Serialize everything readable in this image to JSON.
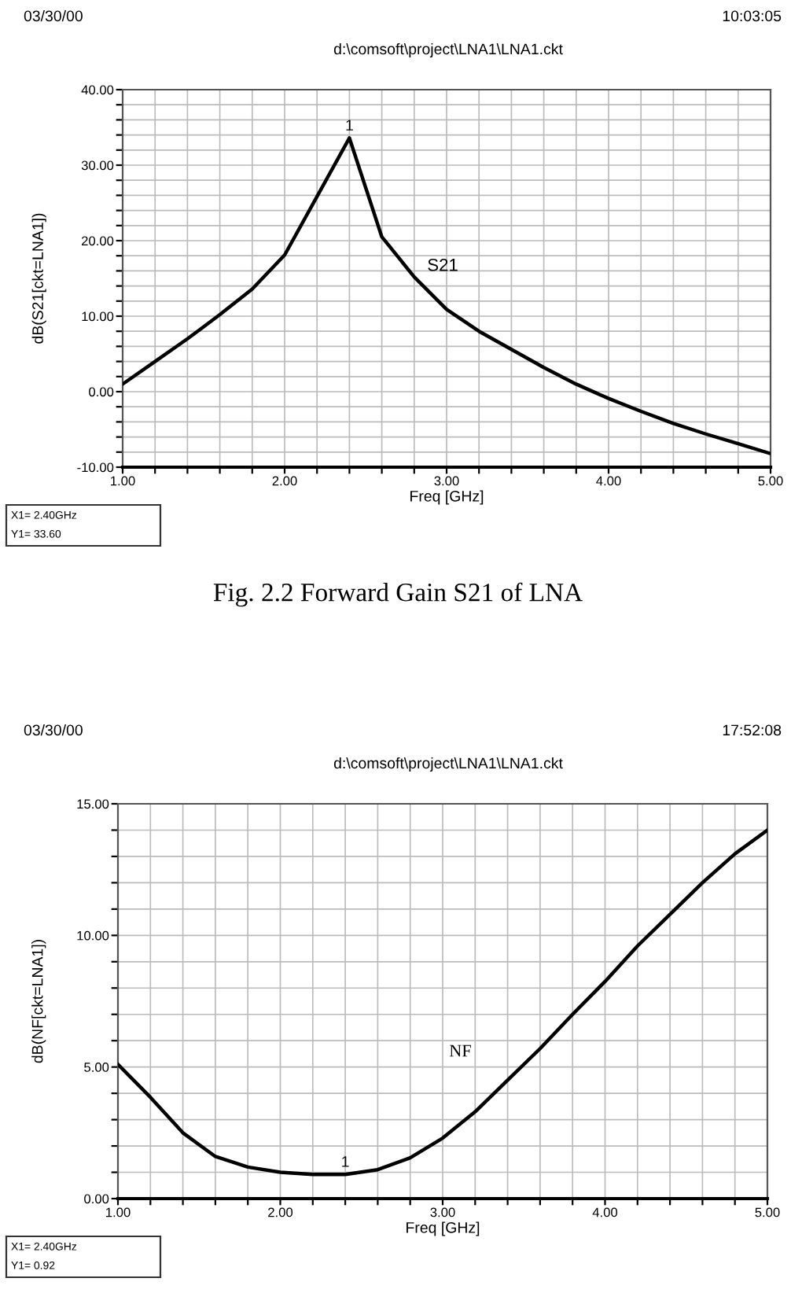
{
  "chart_data": [
    {
      "type": "line",
      "xlabel": "Freq [GHz]",
      "ylabel": "dB(S21[ckt=LNA1])",
      "x": [
        1.0,
        1.2,
        1.4,
        1.6,
        1.8,
        2.0,
        2.4,
        2.6,
        2.8,
        3.0,
        3.2,
        3.4,
        3.6,
        3.8,
        4.0,
        4.2,
        4.4,
        4.6,
        4.8,
        5.0
      ],
      "series": [
        {
          "name": "S21",
          "color": "#000000",
          "values": [
            1.0,
            4.0,
            7.0,
            10.2,
            13.6,
            18.1,
            33.6,
            20.5,
            15.2,
            10.9,
            8.0,
            5.6,
            3.2,
            1.0,
            -0.9,
            -2.6,
            -4.2,
            -5.6,
            -6.9,
            -8.2
          ]
        }
      ],
      "xlim": [
        1,
        5
      ],
      "ylim": [
        -10,
        40
      ],
      "xticks": [
        {
          "value": 1,
          "label": "1.00"
        },
        {
          "value": 1.2,
          "label": null
        },
        {
          "value": 1.4,
          "label": null
        },
        {
          "value": 1.6,
          "label": null
        },
        {
          "value": 1.8,
          "label": null
        },
        {
          "value": 2,
          "label": "2.00"
        },
        {
          "value": 2.2,
          "label": null
        },
        {
          "value": 2.4,
          "label": null
        },
        {
          "value": 2.6,
          "label": null
        },
        {
          "value": 2.8,
          "label": null
        },
        {
          "value": 3,
          "label": "3.00"
        },
        {
          "value": 3.2,
          "label": null
        },
        {
          "value": 3.4,
          "label": null
        },
        {
          "value": 3.6,
          "label": null
        },
        {
          "value": 3.8,
          "label": null
        },
        {
          "value": 4,
          "label": "4.00"
        },
        {
          "value": 4.2,
          "label": null
        },
        {
          "value": 4.4,
          "label": null
        },
        {
          "value": 4.6,
          "label": null
        },
        {
          "value": 4.8,
          "label": null
        },
        {
          "value": 5,
          "label": "5.00"
        }
      ],
      "yticks": [
        {
          "value": -10,
          "label": "-10.00"
        },
        {
          "value": -8,
          "label": null
        },
        {
          "value": -6,
          "label": null
        },
        {
          "value": -4,
          "label": null
        },
        {
          "value": -2,
          "label": null
        },
        {
          "value": 0,
          "label": "0.00"
        },
        {
          "value": 2,
          "label": null
        },
        {
          "value": 4,
          "label": null
        },
        {
          "value": 6,
          "label": null
        },
        {
          "value": 8,
          "label": null
        },
        {
          "value": 10,
          "label": "10.00"
        },
        {
          "value": 12,
          "label": null
        },
        {
          "value": 14,
          "label": null
        },
        {
          "value": 16,
          "label": null
        },
        {
          "value": 18,
          "label": null
        },
        {
          "value": 20,
          "label": "20.00"
        },
        {
          "value": 22,
          "label": null
        },
        {
          "value": 24,
          "label": null
        },
        {
          "value": 26,
          "label": null
        },
        {
          "value": 28,
          "label": null
        },
        {
          "value": 30,
          "label": "30.00"
        },
        {
          "value": 32,
          "label": null
        },
        {
          "value": 34,
          "label": null
        },
        {
          "value": 36,
          "label": null
        },
        {
          "value": 38,
          "label": null
        },
        {
          "value": 40,
          "label": "40.00"
        }
      ],
      "grid": true,
      "legend": false,
      "marker": "none",
      "line_style": "solid",
      "annotations": [
        "03/30/00",
        "10:03:05",
        "d:\\comsoft\\project\\LNA1\\LNA1.ckt",
        "X1= 2.40GHz",
        "Y1= 33.60",
        {
          "text": "1",
          "x": 2.4,
          "y": 33.6
        },
        "Fig. 2.2 Forward Gain S21 of LNA"
      ]
    },
    {
      "type": "line",
      "xlabel": "Freq [GHz]",
      "ylabel": "dB(NF[ckt=LNA1])",
      "x": [
        1.0,
        1.2,
        1.4,
        1.6,
        1.8,
        2.0,
        2.2,
        2.4,
        2.6,
        2.8,
        3.0,
        3.2,
        3.4,
        3.6,
        3.8,
        4.0,
        4.2,
        4.4,
        4.6,
        4.8,
        5.0
      ],
      "series": [
        {
          "name": "NF",
          "color": "#000000",
          "values": [
            5.1,
            3.85,
            2.5,
            1.6,
            1.2,
            1.0,
            0.92,
            0.92,
            1.1,
            1.55,
            2.3,
            3.3,
            4.5,
            5.7,
            7.0,
            8.25,
            9.6,
            10.8,
            12.0,
            13.1,
            14.0
          ]
        }
      ],
      "xlim": [
        1,
        5
      ],
      "ylim": [
        0,
        15
      ],
      "xticks": [
        {
          "value": 1,
          "label": "1.00"
        },
        {
          "value": 1.2,
          "label": null
        },
        {
          "value": 1.4,
          "label": null
        },
        {
          "value": 1.6,
          "label": null
        },
        {
          "value": 1.8,
          "label": null
        },
        {
          "value": 2,
          "label": "2.00"
        },
        {
          "value": 2.2,
          "label": null
        },
        {
          "value": 2.4,
          "label": null
        },
        {
          "value": 2.6,
          "label": null
        },
        {
          "value": 2.8,
          "label": null
        },
        {
          "value": 3,
          "label": "3.00"
        },
        {
          "value": 3.2,
          "label": null
        },
        {
          "value": 3.4,
          "label": null
        },
        {
          "value": 3.6,
          "label": null
        },
        {
          "value": 3.8,
          "label": null
        },
        {
          "value": 4,
          "label": "4.00"
        },
        {
          "value": 4.2,
          "label": null
        },
        {
          "value": 4.4,
          "label": null
        },
        {
          "value": 4.6,
          "label": null
        },
        {
          "value": 4.8,
          "label": null
        },
        {
          "value": 5,
          "label": "5.00"
        }
      ],
      "yticks": [
        {
          "value": 0,
          "label": "0.00"
        },
        {
          "value": 1,
          "label": null
        },
        {
          "value": 2,
          "label": null
        },
        {
          "value": 3,
          "label": null
        },
        {
          "value": 4,
          "label": null
        },
        {
          "value": 5,
          "label": "5.00"
        },
        {
          "value": 6,
          "label": null
        },
        {
          "value": 7,
          "label": null
        },
        {
          "value": 8,
          "label": null
        },
        {
          "value": 9,
          "label": null
        },
        {
          "value": 10,
          "label": "10.00"
        },
        {
          "value": 11,
          "label": null
        },
        {
          "value": 12,
          "label": null
        },
        {
          "value": 13,
          "label": null
        },
        {
          "value": 14,
          "label": null
        },
        {
          "value": 15,
          "label": "15.00"
        }
      ],
      "grid": true,
      "legend": false,
      "marker": "none",
      "line_style": "solid",
      "annotations": [
        "03/30/00",
        "17:52:08",
        "d:\\comsoft\\project\\LNA1\\LNA1.ckt",
        "X1= 2.40GHz",
        "Y1= 0.92",
        {
          "text": "1",
          "x": 2.4,
          "y": 0.92
        }
      ]
    }
  ]
}
